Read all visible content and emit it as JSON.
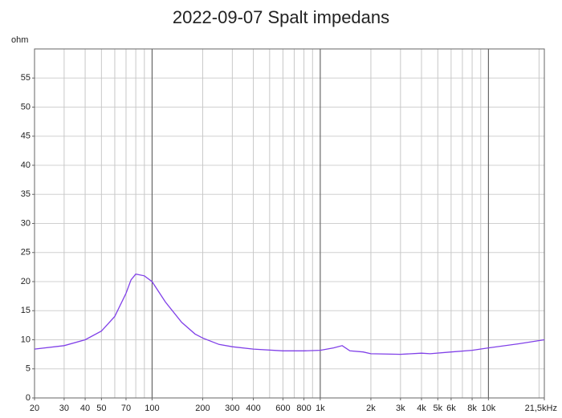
{
  "chart_data": {
    "type": "line",
    "title": "2022-09-07 Spalt impedans",
    "y_label": "ohm",
    "log_x": true,
    "grid": true,
    "xlim": [
      20,
      21500
    ],
    "ylim": [
      0,
      60
    ],
    "xticks": [
      20,
      30,
      40,
      50,
      70,
      {
        "value": 100,
        "label": "100"
      },
      200,
      300,
      400,
      600,
      800,
      {
        "value": 1000,
        "label": "1k"
      },
      {
        "value": 2000,
        "label": "2k"
      },
      {
        "value": 3000,
        "label": "3k"
      },
      {
        "value": 4000,
        "label": "4k"
      },
      {
        "value": 5000,
        "label": "5k"
      },
      {
        "value": 6000,
        "label": "6k"
      },
      {
        "value": 8000,
        "label": "8k"
      },
      {
        "value": 10000,
        "label": "10k"
      },
      {
        "value": 21500,
        "label": "21,5kHz"
      }
    ],
    "x_major_grid": [
      100,
      1000,
      10000
    ],
    "x_minor_grid": [
      60,
      80,
      90,
      500,
      700,
      900,
      7000,
      9000,
      20000
    ],
    "yticks": [
      0,
      5,
      10,
      15,
      20,
      25,
      30,
      35,
      40,
      45,
      50,
      55
    ],
    "series": [
      {
        "name": "Spalt impedans",
        "color": "#8040e8",
        "x": [
          20,
          30,
          40,
          50,
          60,
          70,
          75,
          80,
          90,
          100,
          120,
          150,
          180,
          200,
          250,
          300,
          400,
          600,
          800,
          1000,
          1200,
          1350,
          1500,
          1800,
          2000,
          3000,
          4000,
          4500,
          6000,
          8000,
          10000,
          15000,
          21500
        ],
        "values": [
          8.4,
          9.0,
          10.0,
          11.5,
          14.0,
          18.0,
          20.3,
          21.3,
          21.0,
          20.0,
          16.5,
          13.0,
          11.0,
          10.3,
          9.2,
          8.8,
          8.4,
          8.1,
          8.1,
          8.2,
          8.6,
          9.0,
          8.1,
          7.9,
          7.6,
          7.5,
          7.7,
          7.6,
          7.9,
          8.2,
          8.6,
          9.3,
          10.0
        ]
      }
    ]
  }
}
